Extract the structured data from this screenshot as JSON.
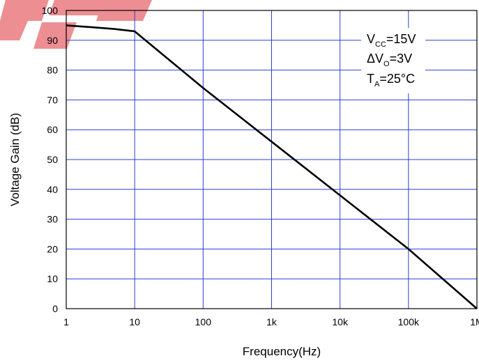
{
  "chart_data": {
    "type": "line",
    "xscale": "log",
    "xlabel": "Frequency(Hz)",
    "ylabel": "Voltage Gain (dB)",
    "xlim": [
      1,
      1000000
    ],
    "ylim": [
      0,
      100
    ],
    "x_ticks": [
      1,
      10,
      100,
      1000,
      10000,
      100000,
      1000000
    ],
    "x_tick_labels": [
      "1",
      "10",
      "100",
      "1k",
      "10k",
      "100k",
      "1M"
    ],
    "y_ticks": [
      0,
      10,
      20,
      30,
      40,
      50,
      60,
      70,
      80,
      90,
      100
    ],
    "y_tick_labels": [
      "0",
      "10",
      "20",
      "30",
      "40",
      "50",
      "60",
      "70",
      "80",
      "90",
      "100"
    ],
    "grid": true,
    "series": [
      {
        "x": [
          1,
          2,
          5,
          10,
          100,
          1000,
          10000,
          100000,
          1000000
        ],
        "y": [
          95,
          94.5,
          93.8,
          93,
          74,
          56,
          38,
          20,
          0
        ]
      }
    ],
    "annotation": {
      "vcc_main": "V",
      "vcc_sub": "CC",
      "vcc_rest": "=15V",
      "dvo_main": "ΔV",
      "dvo_sub": "O",
      "dvo_rest": "=3V",
      "ta_main": "T",
      "ta_sub": "A",
      "ta_rest": "=25°C"
    },
    "colors": {
      "grid": "#2b3fd0",
      "line": "#000000",
      "frame": "#000000",
      "watermark": "#e0323c"
    }
  }
}
